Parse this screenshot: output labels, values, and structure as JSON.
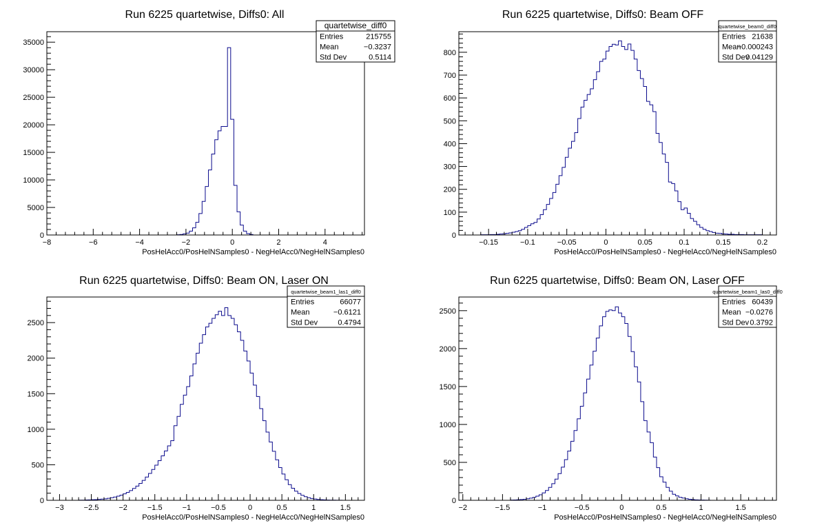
{
  "chart_data": [
    {
      "type": "histogram",
      "title": "Run 6225 quartetwise, Diffs0: All",
      "xlabel": "PosHelAcc0/PosHelNSamples0 - NegHelAcc0/NegHelNSamples0",
      "xlim": [
        -8,
        5.7
      ],
      "ylim": [
        0,
        36900
      ],
      "xticks": [
        -8,
        -6,
        -4,
        -2,
        0,
        2,
        4
      ],
      "xtick_labels": [
        "−8",
        "−6",
        "−4",
        "−2",
        "0",
        "2",
        "4"
      ],
      "yticks": [
        0,
        5000,
        10000,
        15000,
        20000,
        25000,
        30000,
        35000
      ],
      "ytick_labels": [
        "0",
        "5000",
        "10000",
        "15000",
        "20000",
        "25000",
        "30000",
        "35000"
      ],
      "stats": {
        "name": "quartetwise_diff0",
        "rows": [
          {
            "label": "Entries",
            "value": "215755"
          },
          {
            "label": "Mean",
            "value": "−0.3237"
          },
          {
            "label": "Std Dev",
            "value": "0.5114"
          }
        ]
      },
      "bins": {
        "start": -2.4,
        "width": 0.137,
        "counts": [
          50,
          100,
          200,
          350,
          700,
          1300,
          2300,
          3900,
          6100,
          8800,
          11800,
          14700,
          17300,
          18900,
          19700,
          19700,
          34000,
          21000,
          9000,
          4200,
          1800,
          700,
          250,
          100
        ]
      }
    },
    {
      "type": "histogram",
      "title": "Run 6225 quartetwise, Diffs0: Beam OFF",
      "xlabel": "PosHelAcc0/PosHelNSamples0 - NegHelAcc0/NegHelNSamples0",
      "xlim": [
        -0.188,
        0.218
      ],
      "ylim": [
        0,
        890
      ],
      "xticks": [
        -0.15,
        -0.1,
        -0.05,
        0,
        0.05,
        0.1,
        0.15,
        0.2
      ],
      "xtick_labels": [
        "−0.15",
        "−0.1",
        "−0.05",
        "0",
        "0.05",
        "0.1",
        "0.15",
        "0.2"
      ],
      "yticks": [
        0,
        100,
        200,
        300,
        400,
        500,
        600,
        700,
        800
      ],
      "ytick_labels": [
        "0",
        "100",
        "200",
        "300",
        "400",
        "500",
        "600",
        "700",
        "800"
      ],
      "stats": {
        "name": "quartetwise_beam0_diff0",
        "rows": [
          {
            "label": "Entries",
            "value": "21638"
          },
          {
            "label": "Mean",
            "value": "−0.000243"
          },
          {
            "label": "Std Dev",
            "value": "0.04129"
          }
        ]
      },
      "bins": {
        "start": -0.16,
        "width": 0.004,
        "counts": [
          1,
          1,
          1,
          2,
          2,
          3,
          4,
          5,
          7,
          9,
          12,
          15,
          19,
          25,
          33,
          41,
          49,
          55,
          70,
          89,
          111,
          134,
          160,
          186,
          222,
          260,
          296,
          340,
          380,
          410,
          448,
          510,
          560,
          590,
          615,
          640,
          680,
          715,
          760,
          770,
          805,
          825,
          835,
          832,
          850,
          825,
          812,
          836,
          808,
          770,
          720,
          685,
          650,
          585,
          570,
          540,
          445,
          405,
          355,
          318,
          232,
          225,
          193,
          146,
          111,
          118,
          95,
          72,
          60,
          45,
          33,
          25,
          19,
          15,
          11,
          8,
          7,
          5,
          4,
          3,
          3,
          2,
          2,
          2,
          1,
          1,
          1,
          1,
          1,
          1
        ]
      }
    },
    {
      "type": "histogram",
      "title": "Run 6225 quartetwise, Diffs0: Beam ON, Laser ON",
      "xlabel": "PosHelAcc0/PosHelNSamples0 - NegHelAcc0/NegHelNSamples0",
      "xlim": [
        -3.2,
        1.8
      ],
      "ylim": [
        0,
        2860
      ],
      "xticks": [
        -3,
        -2.5,
        -2,
        -1.5,
        -1,
        -0.5,
        0,
        0.5,
        1,
        1.5
      ],
      "xtick_labels": [
        "−3",
        "−2.5",
        "−2",
        "−1.5",
        "−1",
        "−0.5",
        "0",
        "0.5",
        "1",
        "1.5"
      ],
      "yticks": [
        0,
        500,
        1000,
        1500,
        2000,
        2500
      ],
      "ytick_labels": [
        "0",
        "500",
        "1000",
        "1500",
        "2000",
        "2500"
      ],
      "stats": {
        "name": "quartetwise_beam1_las1_diff0",
        "rows": [
          {
            "label": "Entries",
            "value": "66077"
          },
          {
            "label": "Mean",
            "value": "−0.6121"
          },
          {
            "label": "Std Dev",
            "value": "0.4794"
          }
        ]
      },
      "bins": {
        "start": -2.7,
        "width": 0.05,
        "counts": [
          2,
          3,
          5,
          6,
          8,
          10,
          13,
          17,
          21,
          28,
          36,
          46,
          58,
          73,
          91,
          112,
          137,
          167,
          200,
          238,
          280,
          327,
          378,
          434,
          494,
          558,
          625,
          694,
          766,
          838,
          1050,
          1180,
          1350,
          1480,
          1600,
          1750,
          1920,
          2070,
          2210,
          2330,
          2440,
          2490,
          2560,
          2610,
          2660,
          2600,
          2710,
          2600,
          2560,
          2470,
          2370,
          2250,
          2100,
          1960,
          1790,
          1620,
          1460,
          1290,
          1120,
          960,
          820,
          690,
          570,
          460,
          370,
          290,
          220,
          170,
          128,
          96,
          70,
          51,
          36,
          26,
          18,
          12,
          8,
          6,
          4,
          3,
          2,
          1,
          1
        ]
      }
    },
    {
      "type": "histogram",
      "title": "Run 6225 quartetwise, Diffs0: Beam ON, Laser OFF",
      "xlabel": "PosHelAcc0/PosHelNSamples0 - NegHelAcc0/NegHelNSamples0",
      "xlim": [
        -2.05,
        1.95
      ],
      "ylim": [
        0,
        2680
      ],
      "xticks": [
        -2,
        -1.5,
        -1,
        -0.5,
        0,
        0.5,
        1,
        1.5
      ],
      "xtick_labels": [
        "−2",
        "−1.5",
        "−1",
        "−0.5",
        "0",
        "0.5",
        "1",
        "1.5"
      ],
      "yticks": [
        0,
        500,
        1000,
        1500,
        2000,
        2500
      ],
      "ytick_labels": [
        "0",
        "500",
        "1000",
        "1500",
        "2000",
        "2500"
      ],
      "stats": {
        "name": "quartetwise_beam1_las0_diff0",
        "rows": [
          {
            "label": "Entries",
            "value": "60439"
          },
          {
            "label": "Mean",
            "value": "−0.0276"
          },
          {
            "label": "Std Dev",
            "value": "0.3792"
          }
        ]
      },
      "bins": {
        "start": -1.4,
        "width": 0.04,
        "counts": [
          3,
          5,
          7,
          10,
          14,
          20,
          28,
          39,
          54,
          73,
          98,
          130,
          170,
          219,
          279,
          352,
          437,
          536,
          650,
          778,
          920,
          1074,
          1240,
          1416,
          1598,
          1783,
          1966,
          2140,
          2300,
          2420,
          2490,
          2510,
          2500,
          2550,
          2470,
          2420,
          2330,
          2160,
          1960,
          1760,
          1560,
          1300,
          1050,
          900,
          760,
          570,
          430,
          310,
          240,
          170,
          120,
          80,
          58,
          40,
          30,
          20,
          14,
          9,
          6,
          4,
          3,
          2,
          1
        ]
      }
    }
  ]
}
